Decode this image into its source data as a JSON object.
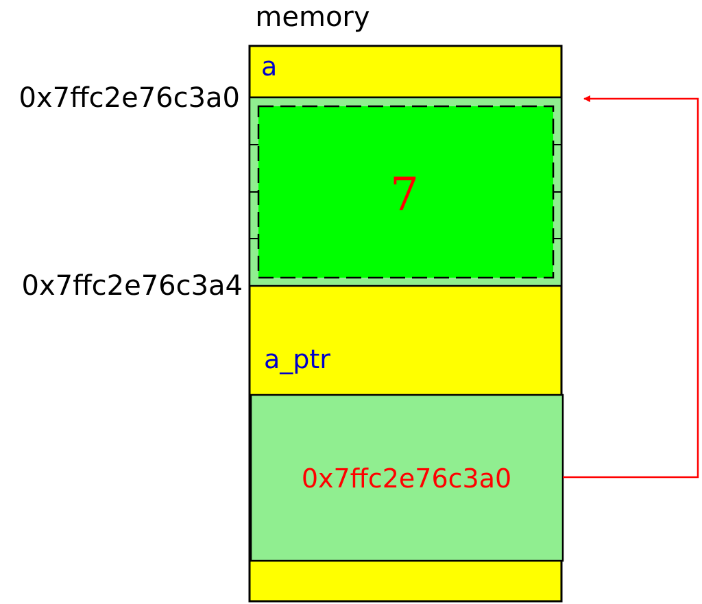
{
  "title": "memory",
  "addresses": {
    "upper": "0x7ffc2e76c3a0",
    "lower": "0x7ffc2e76c3a4"
  },
  "variables": {
    "a": {
      "label": "a",
      "value": "7"
    },
    "a_ptr": {
      "label": "a_ptr",
      "value": "0x7ffc2e76c3a0"
    }
  },
  "colors": {
    "memory_fill": "#ffff00",
    "cell_fill": "#90ee90",
    "value_fill": "#00ff00",
    "label_text": "#0000cc",
    "value_text": "#ff0000",
    "address_text": "#000000",
    "arrow": "#ff0000"
  }
}
